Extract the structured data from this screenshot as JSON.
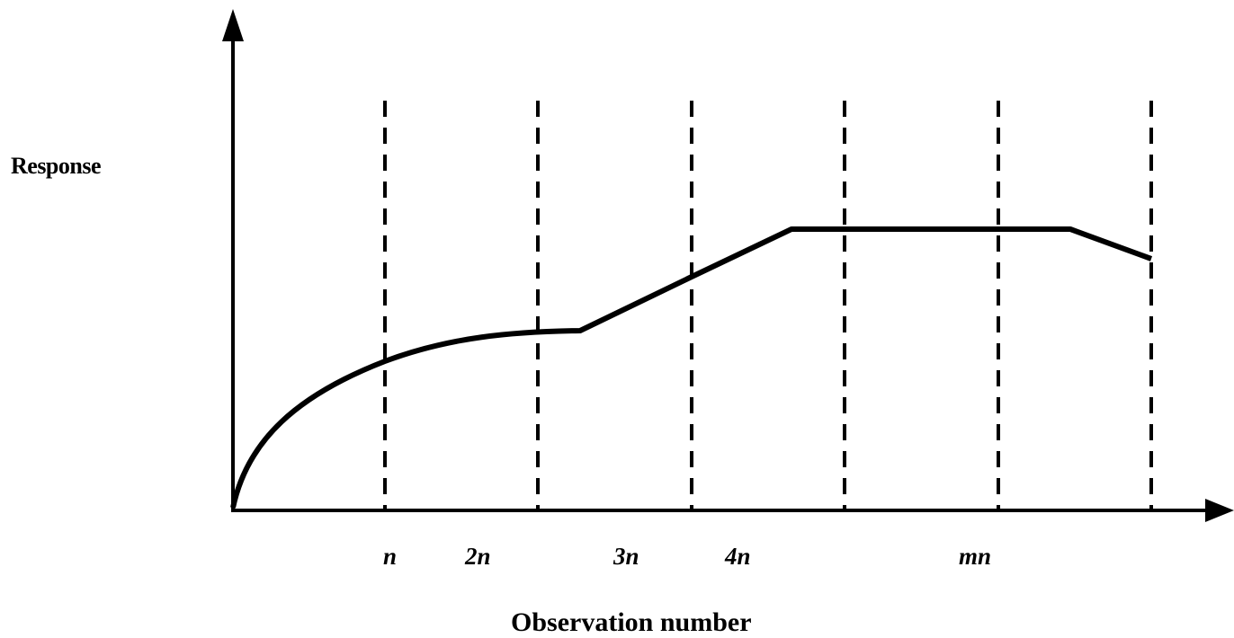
{
  "y_axis_label": "Response",
  "x_axis_label": "Observation number",
  "tick_labels": [
    "n",
    "2n",
    "3n",
    "4n",
    "mn"
  ],
  "colors": {
    "line": "#000000",
    "background": "#ffffff"
  }
}
